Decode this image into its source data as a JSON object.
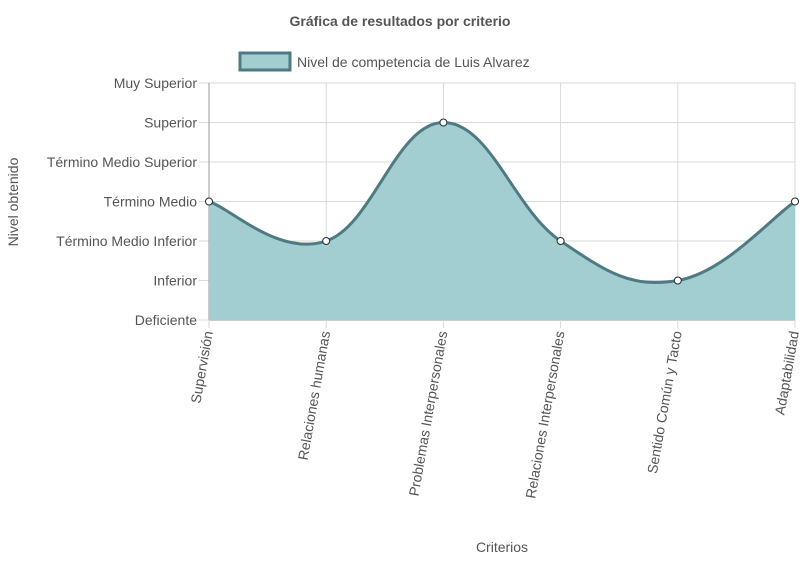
{
  "chart_data": {
    "type": "area",
    "title": "Gráfica de resultados por criterio",
    "xlabel": "Criterios",
    "ylabel": "Nivel obtenido",
    "categories": [
      "Supervisión",
      "Relaciones humanas",
      "Problemas Interpersonales",
      "Relaciones Interpersonales",
      "Sentido Común y Tacto",
      "Adaptabilidad"
    ],
    "y_levels": [
      "Deficiente",
      "Inferior",
      "Término Medio Inferior",
      "Término Medio",
      "Término Medio Superior",
      "Superior",
      "Muy Superior"
    ],
    "series": [
      {
        "name": "Nivel de competencia de Luis Alvarez",
        "values": [
          3,
          2,
          5,
          2,
          1,
          3
        ]
      }
    ],
    "ylim": [
      0,
      6
    ],
    "grid": true,
    "legend_position": "top",
    "colors": {
      "fill": "#a2cdd1",
      "line": "#4f7a82",
      "point_fill": "#ffffff",
      "point_stroke": "#1f2f33",
      "grid": "#d9d9d9",
      "axis": "#999999"
    }
  }
}
